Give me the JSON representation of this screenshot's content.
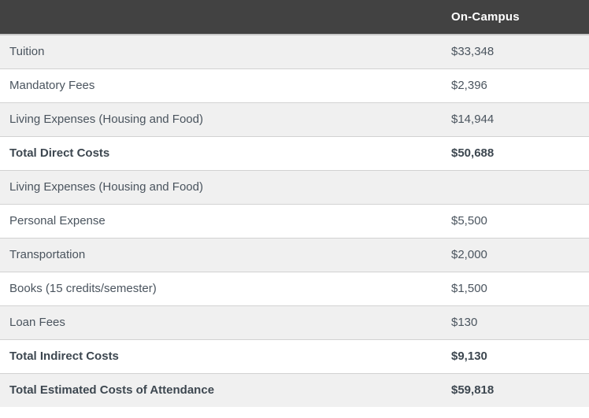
{
  "colors": {
    "header_bg": "#424242",
    "header_text": "#ffffff",
    "row_alt_bg": "#f0f0f0",
    "row_bg": "#ffffff",
    "border": "#d2d2d2",
    "header_border": "#c9c9c9",
    "text": "#4a545e",
    "bold_text": "#3d4750"
  },
  "table": {
    "header": {
      "label": "",
      "value": "On-Campus"
    },
    "rows": [
      {
        "label": "Tuition",
        "value": "$33,348",
        "bold": false
      },
      {
        "label": "Mandatory Fees",
        "value": "$2,396",
        "bold": false
      },
      {
        "label": "Living Expenses (Housing and Food)",
        "value": "$14,944",
        "bold": false
      },
      {
        "label": "Total Direct Costs",
        "value": "$50,688",
        "bold": true
      },
      {
        "label": "Living Expenses (Housing and Food)",
        "value": "",
        "bold": false
      },
      {
        "label": "Personal Expense",
        "value": "$5,500",
        "bold": false
      },
      {
        "label": "Transportation",
        "value": "$2,000",
        "bold": false
      },
      {
        "label": "Books (15 credits/semester)",
        "value": "$1,500",
        "bold": false
      },
      {
        "label": "Loan Fees",
        "value": "$130",
        "bold": false
      },
      {
        "label": "Total Indirect Costs",
        "value": "$9,130",
        "bold": true
      },
      {
        "label": "Total Estimated Costs of Attendance",
        "value": "$59,818",
        "bold": true
      }
    ]
  }
}
